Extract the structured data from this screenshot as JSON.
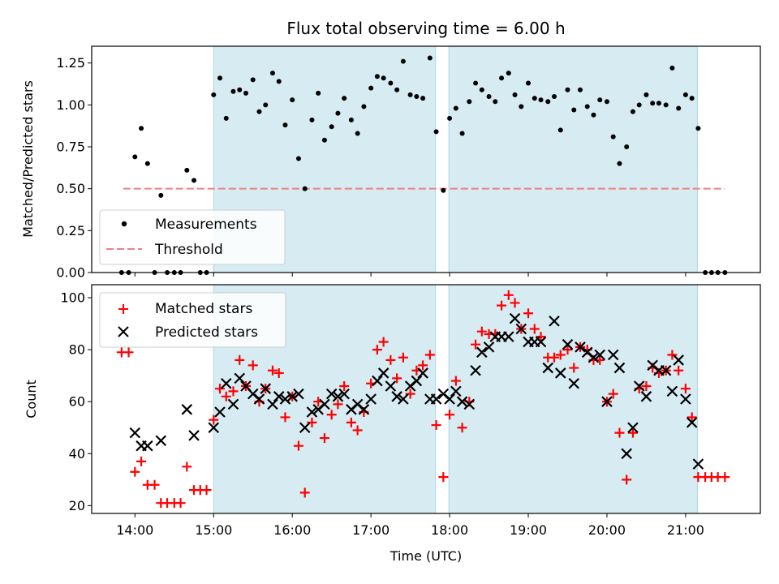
{
  "chart_data": [
    {
      "type": "scatter",
      "title": "Flux total observing time = 6.00 h",
      "xlabel": "",
      "ylabel": "Matched/Predicted stars",
      "xlim": [
        13.45,
        21.95
      ],
      "ylim": [
        0,
        1.35
      ],
      "yticks": [
        0.0,
        0.25,
        0.5,
        0.75,
        1.0,
        1.25
      ],
      "ytick_labels": [
        "0.00",
        "0.25",
        "0.50",
        "0.75",
        "1.00",
        "1.25"
      ],
      "shaded_intervals": [
        [
          15.0,
          17.82
        ],
        [
          17.99,
          21.15
        ]
      ],
      "threshold": {
        "value": 0.5,
        "x_range": [
          13.85,
          21.5
        ],
        "color": "#f08080",
        "label": "Threshold"
      },
      "legend": {
        "position": "lower-left",
        "entries": [
          "Measurements",
          "Threshold"
        ]
      },
      "series": [
        {
          "name": "Measurements",
          "marker": "dot",
          "color": "#000000",
          "x": [
            13.83,
            13.92,
            14.0,
            14.08,
            14.16,
            14.25,
            14.33,
            14.41,
            14.5,
            14.58,
            14.66,
            14.75,
            14.83,
            14.91,
            15.0,
            15.08,
            15.16,
            15.25,
            15.33,
            15.41,
            15.5,
            15.58,
            15.66,
            15.75,
            15.83,
            15.91,
            16.0,
            16.08,
            16.16,
            16.25,
            16.33,
            16.41,
            16.5,
            16.58,
            16.66,
            16.75,
            16.83,
            16.91,
            17.0,
            17.08,
            17.16,
            17.25,
            17.33,
            17.41,
            17.5,
            17.58,
            17.66,
            17.75,
            17.83,
            17.92,
            18.0,
            18.08,
            18.16,
            18.25,
            18.33,
            18.41,
            18.5,
            18.58,
            18.66,
            18.75,
            18.83,
            18.91,
            19.0,
            19.08,
            19.16,
            19.25,
            19.33,
            19.41,
            19.5,
            19.58,
            19.66,
            19.75,
            19.83,
            19.91,
            20.0,
            20.08,
            20.16,
            20.25,
            20.33,
            20.41,
            20.5,
            20.58,
            20.66,
            20.75,
            20.83,
            20.91,
            21.0,
            21.08,
            21.16,
            21.25,
            21.33,
            21.41,
            21.5
          ],
          "y": [
            0,
            0,
            0.69,
            0.86,
            0.65,
            0,
            0.46,
            0,
            0,
            0,
            0.61,
            0.55,
            0,
            0,
            1.06,
            1.16,
            0.92,
            1.08,
            1.09,
            1.07,
            1.15,
            0.96,
            1.0,
            1.19,
            1.14,
            0.88,
            1.03,
            0.68,
            0.5,
            0.91,
            1.07,
            0.79,
            0.87,
            0.95,
            1.04,
            0.91,
            0.83,
            0.99,
            1.1,
            1.17,
            1.16,
            1.13,
            1.09,
            1.26,
            1.06,
            1.05,
            1.04,
            1.28,
            0.84,
            0.49,
            0.92,
            0.98,
            0.83,
            1.02,
            1.13,
            1.09,
            1.05,
            1.02,
            1.16,
            1.19,
            1.06,
            0.99,
            1.13,
            1.04,
            1.03,
            1.02,
            1.05,
            0.85,
            1.09,
            0.97,
            1.09,
            0.99,
            0.94,
            1.03,
            1.02,
            0.81,
            0.65,
            0.75,
            0.96,
            1.0,
            1.06,
            1.01,
            1.01,
            1.0,
            1.22,
            0.98,
            1.06,
            1.04,
            0.86,
            0,
            0,
            0,
            0
          ]
        }
      ]
    },
    {
      "type": "scatter",
      "title": "",
      "xlabel": "Time (UTC)",
      "ylabel": "Count",
      "xlim": [
        13.45,
        21.95
      ],
      "ylim": [
        17,
        105
      ],
      "xticks": [
        14,
        15,
        16,
        17,
        18,
        19,
        20,
        21
      ],
      "xtick_labels": [
        "14:00",
        "15:00",
        "16:00",
        "17:00",
        "18:00",
        "19:00",
        "20:00",
        "21:00"
      ],
      "yticks": [
        20,
        40,
        60,
        80,
        100
      ],
      "ytick_labels": [
        "20",
        "40",
        "60",
        "80",
        "100"
      ],
      "shaded_intervals": [
        [
          15.0,
          17.82
        ],
        [
          17.99,
          21.15
        ]
      ],
      "legend": {
        "position": "upper-left",
        "entries": [
          "Matched stars",
          "Predicted stars"
        ]
      },
      "series": [
        {
          "name": "Matched stars",
          "marker": "plus",
          "color": "#ff0000",
          "x": [
            13.83,
            13.92,
            14.0,
            14.08,
            14.16,
            14.25,
            14.33,
            14.41,
            14.5,
            14.58,
            14.66,
            14.75,
            14.83,
            14.91,
            15.0,
            15.08,
            15.16,
            15.25,
            15.33,
            15.41,
            15.5,
            15.58,
            15.66,
            15.75,
            15.83,
            15.91,
            16.0,
            16.08,
            16.16,
            16.25,
            16.33,
            16.41,
            16.5,
            16.58,
            16.66,
            16.75,
            16.83,
            16.91,
            17.0,
            17.08,
            17.16,
            17.25,
            17.33,
            17.41,
            17.5,
            17.58,
            17.66,
            17.75,
            17.83,
            17.92,
            18.0,
            18.08,
            18.16,
            18.25,
            18.33,
            18.41,
            18.5,
            18.58,
            18.66,
            18.75,
            18.83,
            18.91,
            19.0,
            19.08,
            19.16,
            19.25,
            19.33,
            19.41,
            19.5,
            19.58,
            19.66,
            19.75,
            19.83,
            19.91,
            20.0,
            20.08,
            20.16,
            20.25,
            20.33,
            20.41,
            20.5,
            20.58,
            20.66,
            20.75,
            20.83,
            20.91,
            21.0,
            21.08,
            21.16,
            21.25,
            21.33,
            21.41,
            21.5
          ],
          "y": [
            79,
            79,
            33,
            37,
            28,
            28,
            21,
            21,
            21,
            21,
            35,
            26,
            26,
            26,
            53,
            65,
            62,
            64,
            76,
            66,
            74,
            60,
            65,
            72,
            71,
            54,
            62,
            43,
            25,
            52,
            60,
            46,
            55,
            59,
            66,
            52,
            49,
            56,
            67,
            80,
            83,
            76,
            69,
            77,
            63,
            72,
            74,
            78,
            51,
            31,
            55,
            68,
            50,
            60,
            82,
            87,
            86,
            86,
            97,
            101,
            98,
            88,
            94,
            88,
            85,
            77,
            77,
            78,
            80,
            73,
            81,
            80,
            76,
            76,
            60,
            63,
            48,
            30,
            48,
            65,
            66,
            73,
            71,
            72,
            78,
            72,
            65,
            54,
            31,
            31,
            31,
            31,
            31
          ]
        },
        {
          "name": "Predicted stars",
          "marker": "x",
          "color": "#000000",
          "x": [
            14.0,
            14.08,
            14.16,
            14.33,
            14.66,
            14.75,
            15.0,
            15.08,
            15.16,
            15.25,
            15.33,
            15.41,
            15.5,
            15.58,
            15.66,
            15.75,
            15.83,
            15.91,
            16.0,
            16.08,
            16.16,
            16.25,
            16.33,
            16.41,
            16.5,
            16.58,
            16.66,
            16.75,
            16.83,
            16.91,
            17.0,
            17.08,
            17.16,
            17.25,
            17.33,
            17.41,
            17.5,
            17.58,
            17.66,
            17.75,
            17.83,
            17.92,
            18.0,
            18.08,
            18.16,
            18.25,
            18.33,
            18.41,
            18.5,
            18.58,
            18.66,
            18.75,
            18.83,
            18.91,
            19.0,
            19.08,
            19.16,
            19.25,
            19.33,
            19.41,
            19.5,
            19.58,
            19.66,
            19.75,
            19.83,
            19.91,
            20.0,
            20.08,
            20.16,
            20.25,
            20.33,
            20.41,
            20.5,
            20.58,
            20.66,
            20.75,
            20.83,
            20.91,
            21.0,
            21.08,
            21.16
          ],
          "y": [
            48,
            43,
            43,
            45,
            57,
            47,
            50,
            56,
            67,
            59,
            69,
            66,
            63,
            61,
            65,
            59,
            62,
            61,
            62,
            63,
            50,
            56,
            57,
            59,
            63,
            62,
            63,
            57,
            59,
            57,
            61,
            68,
            71,
            66,
            62,
            61,
            66,
            68,
            71,
            61,
            61,
            63,
            61,
            64,
            60,
            59,
            72,
            79,
            81,
            85,
            85,
            85,
            92,
            88,
            83,
            83,
            83,
            73,
            91,
            71,
            82,
            67,
            81,
            79,
            77,
            78,
            60,
            78,
            73,
            40,
            50,
            66,
            62,
            74,
            72,
            72,
            64,
            76,
            61,
            52,
            36
          ]
        }
      ]
    }
  ]
}
